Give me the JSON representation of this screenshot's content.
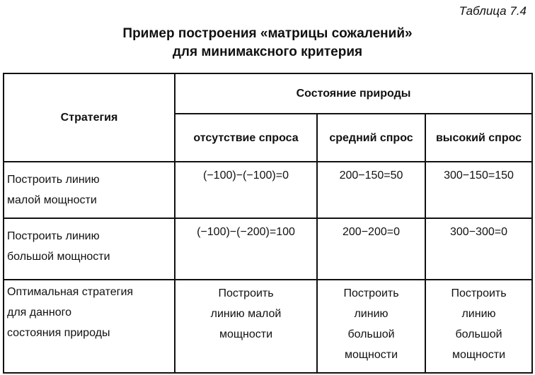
{
  "table_number": "Таблица 7.4",
  "title_line1": "Пример построения «матрицы сожалений»",
  "title_line2": "для минимаксного критерия",
  "header": {
    "strategy": "Стратегия",
    "nature_state": "Состояние природы",
    "states": [
      "отсутствие спроса",
      "средний спрос",
      "высокий спрос"
    ]
  },
  "rows": [
    {
      "strategy": [
        "Построить линию",
        "малой мощности"
      ],
      "values": [
        "(−100)−(−100)=0",
        "200−150=50",
        "300−150=150"
      ]
    },
    {
      "strategy": [
        "Построить линию",
        "большой мощности"
      ],
      "values": [
        "(−100)−(−200)=100",
        "200−200=0",
        "300−300=0"
      ]
    }
  ],
  "optimal": {
    "label": [
      "Оптимальная стратегия",
      "для данного",
      "состояния природы"
    ],
    "values": [
      [
        "Построить",
        "линию малой",
        "мощности"
      ],
      [
        "Построить",
        "линию",
        "большой",
        "мощности"
      ],
      [
        "Построить",
        "линию",
        "большой",
        "мощности"
      ]
    ]
  }
}
